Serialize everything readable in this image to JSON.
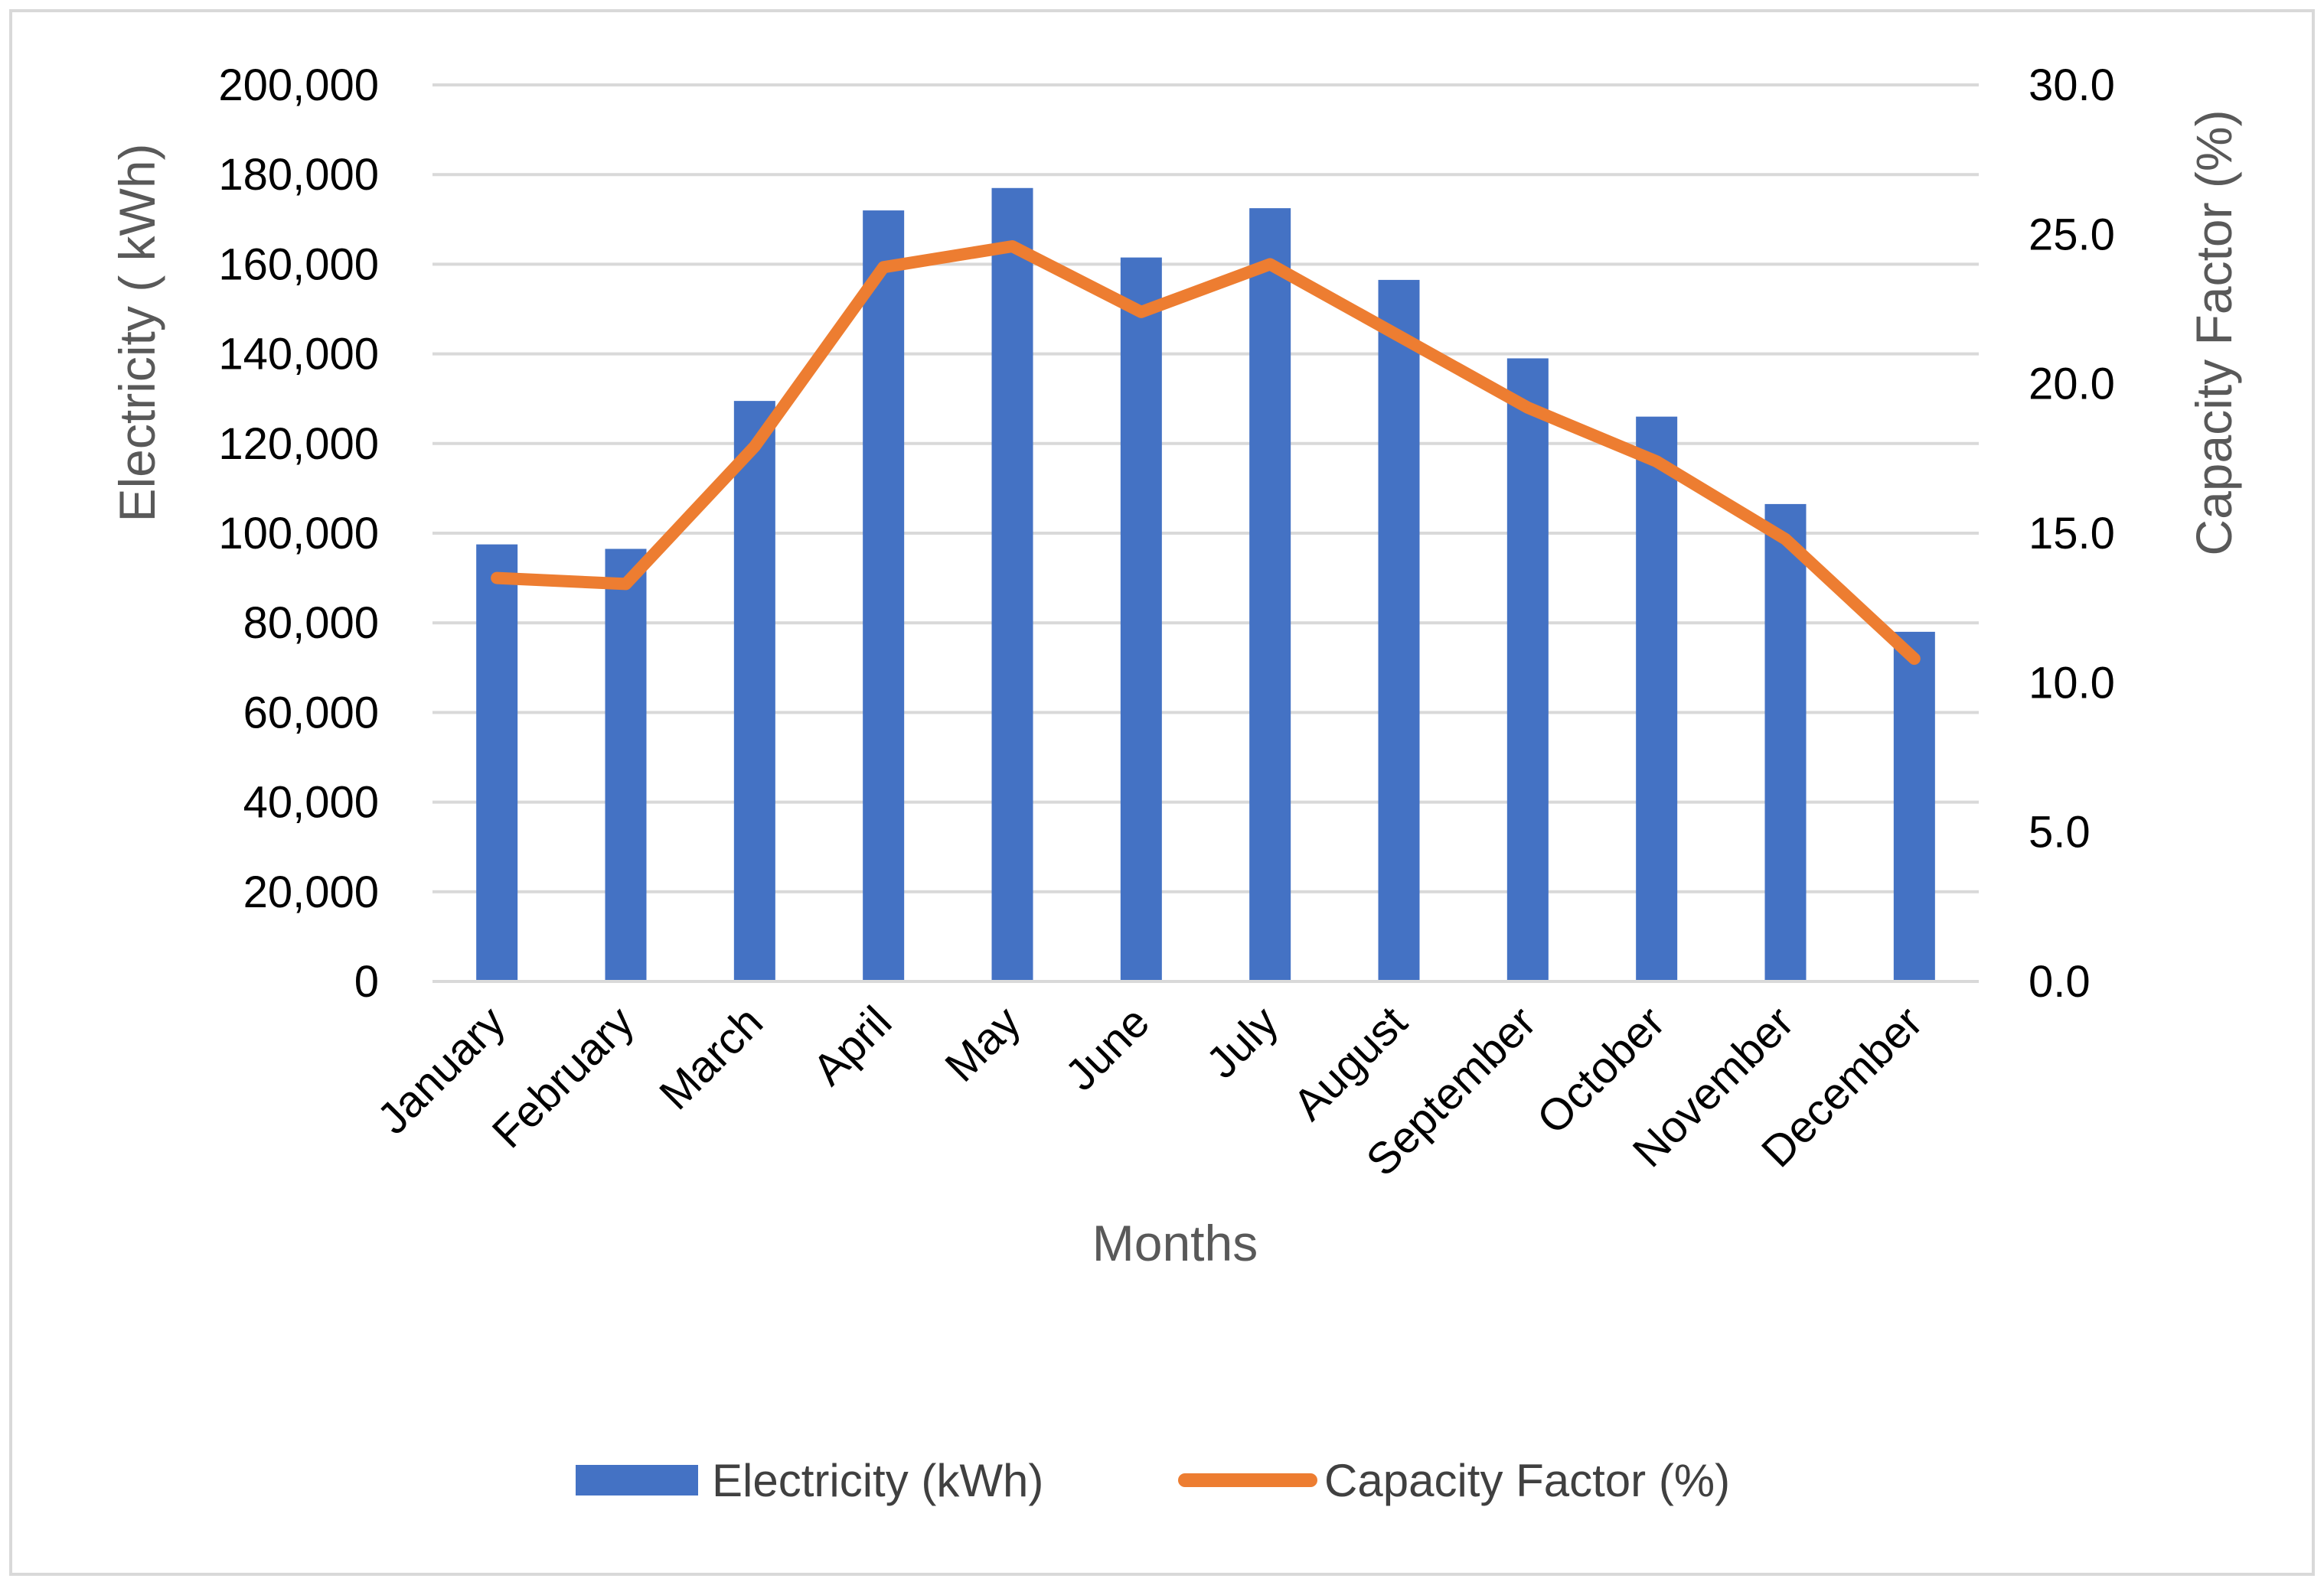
{
  "chart_data": {
    "type": "bar",
    "title": "",
    "xlabel": "Months",
    "ylabel": "Electricity ( kWh)",
    "y2label": "Capacity Factor (%)",
    "categories": [
      "January",
      "February",
      "March",
      "April",
      "May",
      "June",
      "July",
      "August",
      "September",
      "October",
      "November",
      "December"
    ],
    "series": [
      {
        "name": "Electricity (kWh)",
        "type": "bar",
        "axis": "left",
        "color": "#4472C4",
        "values": [
          97500,
          96500,
          129500,
          172000,
          177000,
          161500,
          172500,
          156500,
          139000,
          126000,
          106500,
          78000
        ]
      },
      {
        "name": "Capacity Factor (%)",
        "type": "line",
        "axis": "right",
        "color": "#ED7D31",
        "values": [
          13.5,
          13.3,
          17.9,
          23.9,
          24.6,
          22.4,
          24.0,
          21.6,
          19.2,
          17.4,
          14.8,
          10.8
        ]
      }
    ],
    "ylim": [
      0,
      200000
    ],
    "y2lim": [
      0,
      30
    ],
    "yticks": [
      "0",
      "20,000",
      "40,000",
      "60,000",
      "80,000",
      "100,000",
      "120,000",
      "140,000",
      "160,000",
      "180,000",
      "200,000"
    ],
    "y2ticks": [
      "0.0",
      "5.0",
      "10.0",
      "15.0",
      "20.0",
      "25.0",
      "30.0"
    ],
    "grid": true,
    "legend": "bottom"
  }
}
